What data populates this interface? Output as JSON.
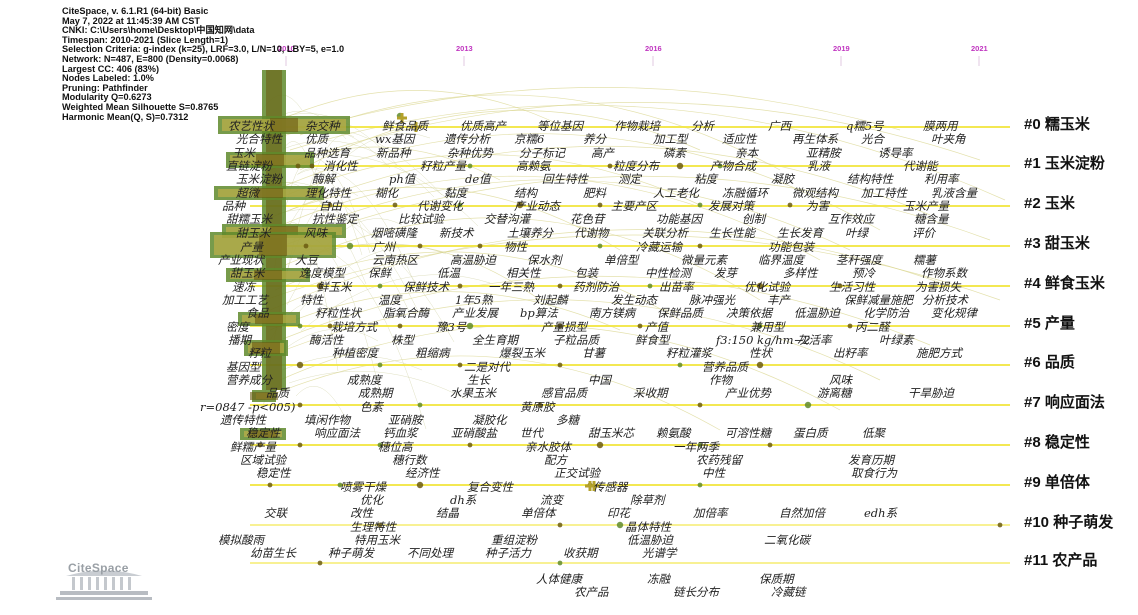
{
  "header": {
    "lines": [
      "CiteSpace, v. 6.1.R1 (64-bit) Basic",
      "May 7, 2022 at 11:45:39 AM CST",
      "CNKI: C:\\Users\\home\\Desktop\\中国知网\\data",
      "Timespan: 2010-2021 (Slice Length=1)",
      "Selection Criteria: g-index (k=25), LRF=3.0, L/N=10, LBY=5, e=1.0",
      "Network: N=487, E=800 (Density=0.0068)",
      "Largest CC: 406 (83%)",
      "Nodes Labeled: 1.0%",
      "Pruning: Pathfinder",
      "Modularity Q=0.6273",
      "Weighted Mean Silhouette S=0.8765",
      "Harmonic Mean(Q, S)=0.7312"
    ]
  },
  "timeline": {
    "years": [
      "2010",
      "2013",
      "2016",
      "2019",
      "2021"
    ],
    "year_color": "#c035c0"
  },
  "colors": {
    "timeline_line": "#f2e640",
    "arc": "#d9d48a",
    "node_dark": "#6b5a10",
    "node_mid": "#5f8a2c",
    "node_light": "#cbb34a"
  },
  "clusters": [
    {
      "label": "#0 糯玉米"
    },
    {
      "label": "#1 玉米淀粉"
    },
    {
      "label": "#2 玉米"
    },
    {
      "label": "#3 甜玉米"
    },
    {
      "label": "#4 鲜食玉米"
    },
    {
      "label": "#5 产量"
    },
    {
      "label": "#6 品质"
    },
    {
      "label": "#7 响应面法"
    },
    {
      "label": "#8 稳定性"
    },
    {
      "label": "#9 单倍体"
    },
    {
      "label": "#10 种子萌发"
    },
    {
      "label": "#11 农产品"
    }
  ],
  "terms": [
    [
      "农艺性状",
      "杂交种",
      "鲜食品质",
      "优质高产",
      "等位基因",
      "作物栽培",
      "分析",
      "广西",
      "q糯5号",
      "膜两用"
    ],
    [
      "光合特性",
      "优质",
      "wx基因",
      "遗传分析",
      "京糯6",
      "养分",
      "加工型",
      "适应性",
      "再生体系",
      "光合",
      "叶夹角"
    ],
    [
      "玉米",
      "品种选育",
      "新品种",
      "杂种优势",
      "分子标记",
      "高产",
      "磷素",
      "亲本",
      "亚精胺",
      "诱导率"
    ],
    [
      "直链淀粉",
      "消化性",
      "籽粒产量",
      "高赖氨",
      "粒度分布",
      "产物合成",
      "乳液",
      "代谢能"
    ],
    [
      "玉米淀粉",
      "酶解",
      "ph值",
      "de值",
      "回生特性",
      "测定",
      "粘度",
      "凝胶",
      "结构特性",
      "利用率"
    ],
    [
      "超微",
      "理化特性",
      "糊化",
      "黏度",
      "结构",
      "肥料",
      "人工老化",
      "冻融循环",
      "微观结构",
      "加工特性",
      "乳液含量"
    ],
    [
      "品种",
      "自由",
      "代谢变化",
      "产业动态",
      "主要产区",
      "发展对策",
      "为害",
      "玉米产量"
    ],
    [
      "甜糯玉米",
      "抗性鉴定",
      "比较试验",
      "交替沟灌",
      "花色苷",
      "功能基因",
      "创制",
      "互作效应",
      "糖含量"
    ],
    [
      "甜玉米",
      "风味",
      "烟嘧磺隆",
      "新技术",
      "土壤养分",
      "代谢物",
      "关联分析",
      "生长性能",
      "生长发育",
      "叶绿",
      "评价"
    ],
    [
      "产量",
      "广州",
      "物性",
      "冷藏运输",
      "功能包装"
    ],
    [
      "产业现状",
      "大豆",
      "云南热区",
      "高温胁迫",
      "保水剂",
      "单倍型",
      "微量元素",
      "临界温度",
      "茎秆强度",
      "糯薯"
    ],
    [
      "甜玉米",
      "逸度模型",
      "保鲜",
      "低温",
      "相关性",
      "包装",
      "中性检测",
      "发芽",
      "多样性",
      "预冷",
      "作物系数"
    ],
    [
      "速冻",
      "鲜玉米",
      "保鲜技术",
      "一年三熟",
      "药剂防治",
      "出苗率",
      "优化试验",
      "生活习性",
      "为害损失"
    ],
    [
      "加工工艺",
      "特性",
      "温度",
      "1年5熟",
      "刘起麟",
      "发生动态",
      "脉冲强光",
      "丰产",
      "保鲜减量施肥",
      "分析技术"
    ],
    [
      "食品",
      "籽粒性状",
      "脂氧合酶",
      "产业发展",
      "bp算法",
      "南方镁病",
      "保鲜品质",
      "决策依据",
      "低温胁迫",
      "化学防治",
      "变化规律"
    ],
    [
      "密度",
      "栽培方式",
      "豫3号",
      "产量损型",
      "产值",
      "兼用型",
      "丙二醛"
    ],
    [
      "播期",
      "酶活性",
      "株型",
      "全生育期",
      "子粒品质",
      "鲜食型",
      "f3:150 kg/hm−2",
      "灰活率",
      "叶绿素"
    ],
    [
      "籽粒",
      "种植密度",
      "粗缩病",
      "爆裂玉米",
      "甘薯",
      "籽粒灌浆",
      "性状",
      "出籽率",
      "施肥方式"
    ],
    [
      "基因型",
      "二是对代",
      "营养品质"
    ],
    [
      "营养成分",
      "成熟度",
      "生长",
      "中国",
      "作物",
      "风味"
    ],
    [
      "品质",
      "成熟期",
      "水果玉米",
      "感官品质",
      "采收期",
      "产业优势",
      "游离糖",
      "干旱胁迫"
    ],
    [
      "r=0847 -p<005)",
      "色素",
      "黄原胶"
    ],
    [
      "遗传特性",
      "填闲作物",
      "亚硝胺",
      "凝胶化",
      "多糖"
    ],
    [
      "稳定性",
      "响应面法",
      "钙血浆",
      "亚硝酸盐",
      "世代",
      "甜玉米芯",
      "赖氨酸",
      "可溶性糖",
      "蛋白质",
      "低聚"
    ],
    [
      "鲜糯产量",
      "穗位高",
      "亲水胶体",
      "一年两季"
    ],
    [
      "区域试验",
      "穗行数",
      "配方",
      "农药残留",
      "发育历期"
    ],
    [
      "稳定性",
      "经济性",
      "正交试验",
      "中性",
      "取食行为"
    ],
    [
      "喷雾干燥",
      "复合变性",
      "传感器"
    ],
    [
      "优化",
      "dh系",
      "流变",
      "除草剂"
    ],
    [
      "交联",
      "改性",
      "结晶",
      "单倍体",
      "印花",
      "加倍率",
      "自然加倍",
      "edh系"
    ],
    [
      "生理特性",
      "晶体特性"
    ],
    [
      "模拟酸雨",
      "特用玉米",
      "重组淀粉",
      "低温胁迫",
      "二氧化碳"
    ],
    [
      "幼苗生长",
      "种子萌发",
      "不同处理",
      "种子活力",
      "收获期",
      "光谱学"
    ],
    [
      "人体健康",
      "冻融",
      "保质期"
    ],
    [
      "农产品",
      "链长分布",
      "冷藏链"
    ]
  ],
  "logo": {
    "text": "CiteSpace"
  }
}
